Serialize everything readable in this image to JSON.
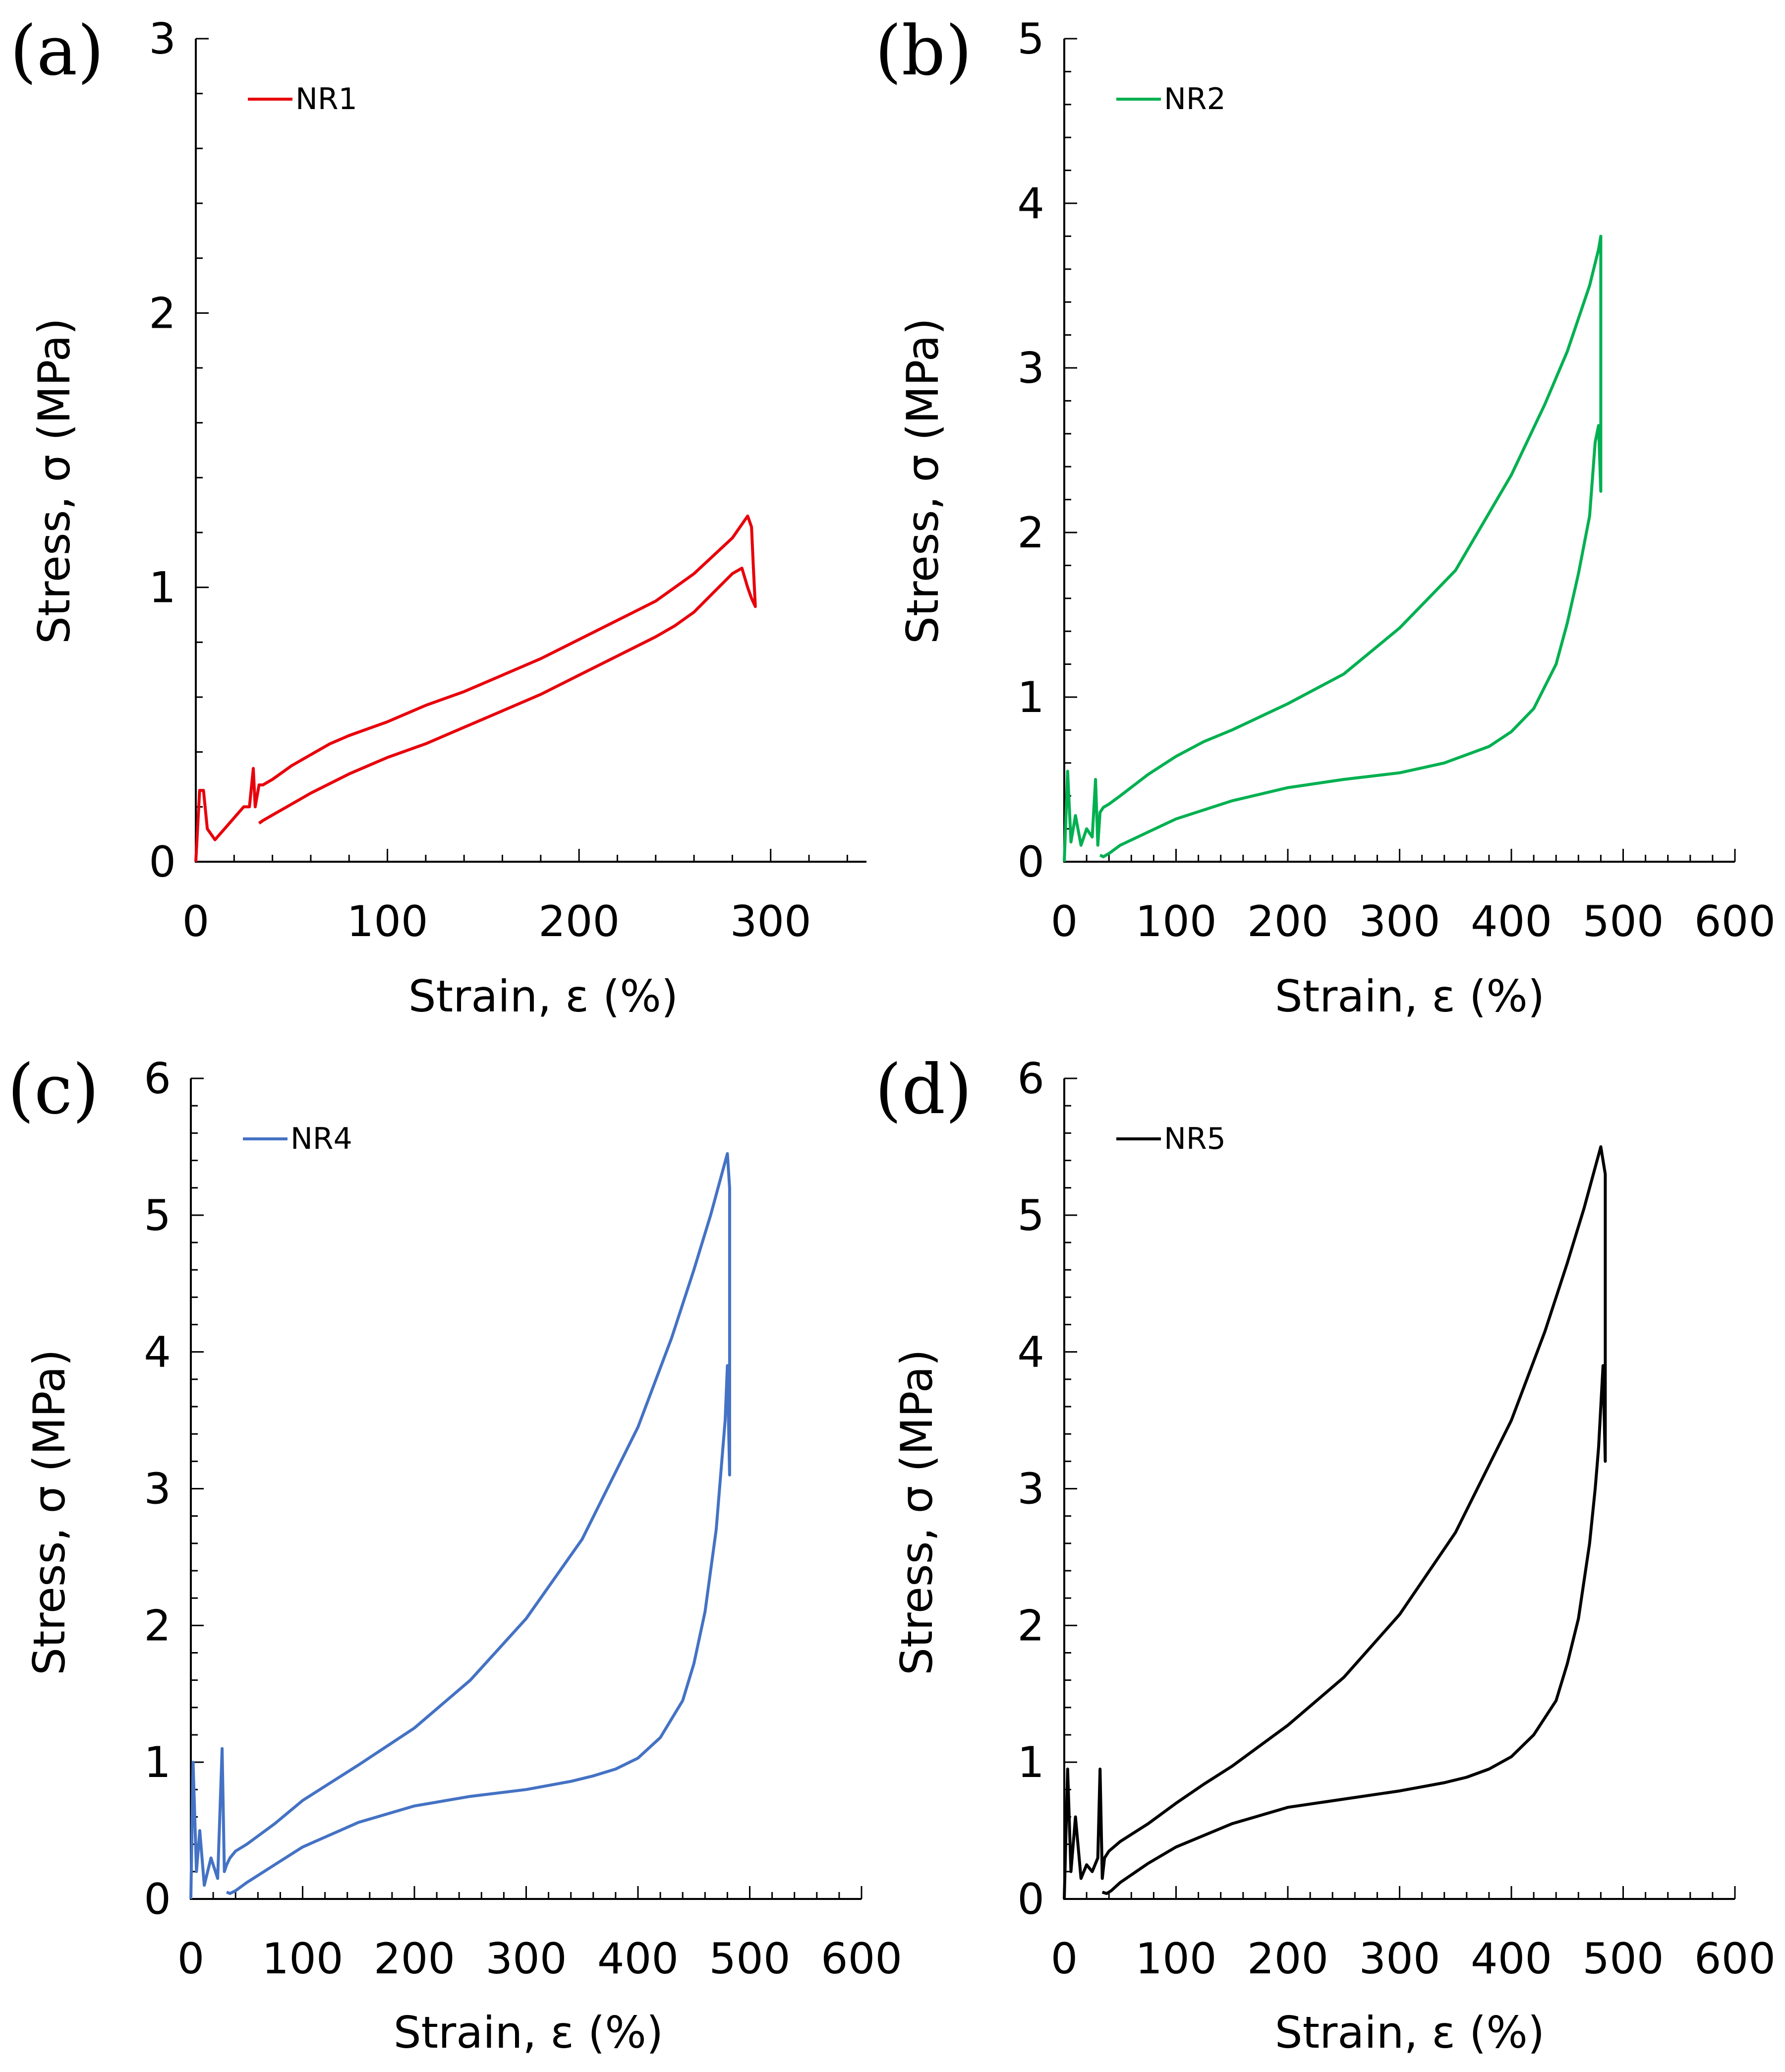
{
  "chart_data": [
    {
      "type": "line",
      "panel_label": "(a)",
      "xlabel": "Strain, ε (%)",
      "ylabel": "Stress, σ (MPa)",
      "xlim": [
        0,
        350
      ],
      "ylim": [
        0,
        3
      ],
      "xticks": [
        0,
        100,
        200,
        300
      ],
      "xtick_labels": [
        "0",
        "100",
        "200",
        "300"
      ],
      "yticks": [
        0,
        1,
        2,
        3
      ],
      "ytick_labels": [
        "0",
        "1",
        "2",
        "3"
      ],
      "grid": false,
      "legend_position": "top-left",
      "series": [
        {
          "name": "NR1",
          "color": "#e8000b",
          "x": [
            0,
            2,
            4,
            6,
            10,
            15,
            20,
            25,
            28,
            30,
            31,
            33,
            35,
            40,
            50,
            60,
            70,
            80,
            100,
            120,
            140,
            160,
            180,
            200,
            220,
            240,
            260,
            280,
            288,
            290,
            291,
            292,
            290,
            288,
            285,
            280,
            270,
            260,
            250,
            240,
            220,
            200,
            180,
            160,
            140,
            120,
            100,
            80,
            60,
            50,
            40,
            35,
            33
          ],
          "y": [
            0.0,
            0.26,
            0.26,
            0.12,
            0.08,
            0.12,
            0.16,
            0.2,
            0.2,
            0.34,
            0.2,
            0.28,
            0.28,
            0.3,
            0.35,
            0.39,
            0.43,
            0.46,
            0.51,
            0.57,
            0.62,
            0.68,
            0.74,
            0.81,
            0.88,
            0.95,
            1.05,
            1.18,
            1.26,
            1.22,
            1.07,
            0.93,
            0.96,
            1.0,
            1.07,
            1.05,
            0.98,
            0.91,
            0.86,
            0.82,
            0.75,
            0.68,
            0.61,
            0.55,
            0.49,
            0.43,
            0.38,
            0.32,
            0.25,
            0.21,
            0.17,
            0.15,
            0.14
          ]
        }
      ]
    },
    {
      "type": "line",
      "panel_label": "(b)",
      "xlabel": "Strain, ε (%)",
      "ylabel": "Stress, σ (MPa)",
      "xlim": [
        0,
        600
      ],
      "ylim": [
        0,
        5
      ],
      "xticks": [
        0,
        100,
        200,
        300,
        400,
        500,
        600
      ],
      "xtick_labels": [
        "0",
        "100",
        "200",
        "300",
        "400",
        "500",
        "600"
      ],
      "yticks": [
        0,
        1,
        2,
        3,
        4,
        5
      ],
      "ytick_labels": [
        "0",
        "1",
        "2",
        "3",
        "4",
        "5"
      ],
      "grid": false,
      "legend_position": "top-left",
      "series": [
        {
          "name": "NR2",
          "color": "#00b050",
          "x": [
            0,
            3,
            6,
            10,
            15,
            20,
            25,
            28,
            30,
            32,
            35,
            40,
            50,
            75,
            100,
            125,
            150,
            200,
            250,
            300,
            350,
            400,
            430,
            450,
            470,
            478,
            480,
            480,
            478,
            475,
            470,
            460,
            450,
            440,
            420,
            400,
            380,
            360,
            340,
            320,
            300,
            250,
            200,
            150,
            100,
            75,
            50,
            40,
            35,
            32
          ],
          "y": [
            0.0,
            0.55,
            0.12,
            0.28,
            0.1,
            0.2,
            0.15,
            0.5,
            0.1,
            0.3,
            0.33,
            0.35,
            0.4,
            0.53,
            0.64,
            0.73,
            0.8,
            0.96,
            1.14,
            1.42,
            1.77,
            2.35,
            2.78,
            3.1,
            3.5,
            3.72,
            3.8,
            2.25,
            2.65,
            2.55,
            2.1,
            1.75,
            1.45,
            1.2,
            0.93,
            0.79,
            0.7,
            0.65,
            0.6,
            0.57,
            0.54,
            0.5,
            0.45,
            0.37,
            0.26,
            0.18,
            0.1,
            0.05,
            0.03,
            0.04
          ]
        }
      ]
    },
    {
      "type": "line",
      "panel_label": "(c)",
      "xlabel": "Strain, ε (%)",
      "ylabel": "Stress, σ (MPa)",
      "xlim": [
        0,
        600
      ],
      "ylim": [
        0,
        6
      ],
      "xticks": [
        0,
        100,
        200,
        300,
        400,
        500,
        600
      ],
      "xtick_labels": [
        "0",
        "100",
        "200",
        "300",
        "400",
        "500",
        "600"
      ],
      "yticks": [
        0,
        1,
        2,
        3,
        4,
        5,
        6
      ],
      "ytick_labels": [
        "0",
        "1",
        "2",
        "3",
        "4",
        "5",
        "6"
      ],
      "grid": false,
      "legend_position": "top-left",
      "series": [
        {
          "name": "NR4",
          "color": "#4472c4",
          "x": [
            0,
            2,
            5,
            8,
            12,
            18,
            24,
            28,
            30,
            32,
            35,
            40,
            50,
            75,
            100,
            125,
            150,
            200,
            250,
            300,
            350,
            400,
            430,
            450,
            465,
            475,
            480,
            482,
            482,
            480,
            478,
            475,
            470,
            460,
            450,
            440,
            420,
            400,
            380,
            360,
            340,
            320,
            300,
            250,
            200,
            150,
            100,
            75,
            50,
            40,
            35,
            32
          ],
          "y": [
            0.0,
            1.0,
            0.2,
            0.5,
            0.1,
            0.3,
            0.15,
            1.1,
            0.2,
            0.25,
            0.3,
            0.35,
            0.4,
            0.55,
            0.72,
            0.85,
            0.98,
            1.25,
            1.6,
            2.05,
            2.63,
            3.45,
            4.1,
            4.6,
            5.0,
            5.3,
            5.45,
            5.2,
            3.1,
            3.9,
            3.5,
            3.2,
            2.7,
            2.1,
            1.72,
            1.45,
            1.18,
            1.03,
            0.95,
            0.9,
            0.86,
            0.83,
            0.8,
            0.75,
            0.68,
            0.56,
            0.38,
            0.25,
            0.12,
            0.06,
            0.04,
            0.05
          ]
        }
      ]
    },
    {
      "type": "line",
      "panel_label": "(d)",
      "xlabel": "Strain, ε (%)",
      "ylabel": "Stress, σ (MPa)",
      "xlim": [
        0,
        600
      ],
      "ylim": [
        0,
        6
      ],
      "xticks": [
        0,
        100,
        200,
        300,
        400,
        500,
        600
      ],
      "xtick_labels": [
        "0",
        "100",
        "200",
        "300",
        "400",
        "500",
        "600"
      ],
      "yticks": [
        0,
        1,
        2,
        3,
        4,
        5,
        6
      ],
      "ytick_labels": [
        "0",
        "1",
        "2",
        "3",
        "4",
        "5",
        "6"
      ],
      "grid": false,
      "legend_position": "top-left",
      "series": [
        {
          "name": "NR5",
          "color": "#000000",
          "x": [
            0,
            3,
            6,
            10,
            15,
            20,
            25,
            30,
            32,
            34,
            36,
            40,
            50,
            75,
            100,
            125,
            150,
            200,
            250,
            300,
            350,
            400,
            430,
            450,
            465,
            475,
            480,
            484,
            484,
            482,
            480,
            478,
            475,
            470,
            460,
            450,
            440,
            420,
            400,
            380,
            360,
            340,
            320,
            300,
            250,
            200,
            150,
            100,
            75,
            50,
            42,
            38,
            34
          ],
          "y": [
            0.0,
            0.95,
            0.2,
            0.6,
            0.15,
            0.25,
            0.2,
            0.3,
            0.95,
            0.15,
            0.3,
            0.35,
            0.42,
            0.55,
            0.7,
            0.84,
            0.97,
            1.27,
            1.62,
            2.08,
            2.68,
            3.5,
            4.15,
            4.65,
            5.05,
            5.35,
            5.5,
            5.3,
            3.2,
            3.9,
            3.6,
            3.3,
            3.0,
            2.6,
            2.05,
            1.72,
            1.45,
            1.2,
            1.04,
            0.95,
            0.89,
            0.85,
            0.82,
            0.79,
            0.73,
            0.67,
            0.55,
            0.38,
            0.26,
            0.12,
            0.06,
            0.04,
            0.05
          ]
        }
      ]
    }
  ]
}
